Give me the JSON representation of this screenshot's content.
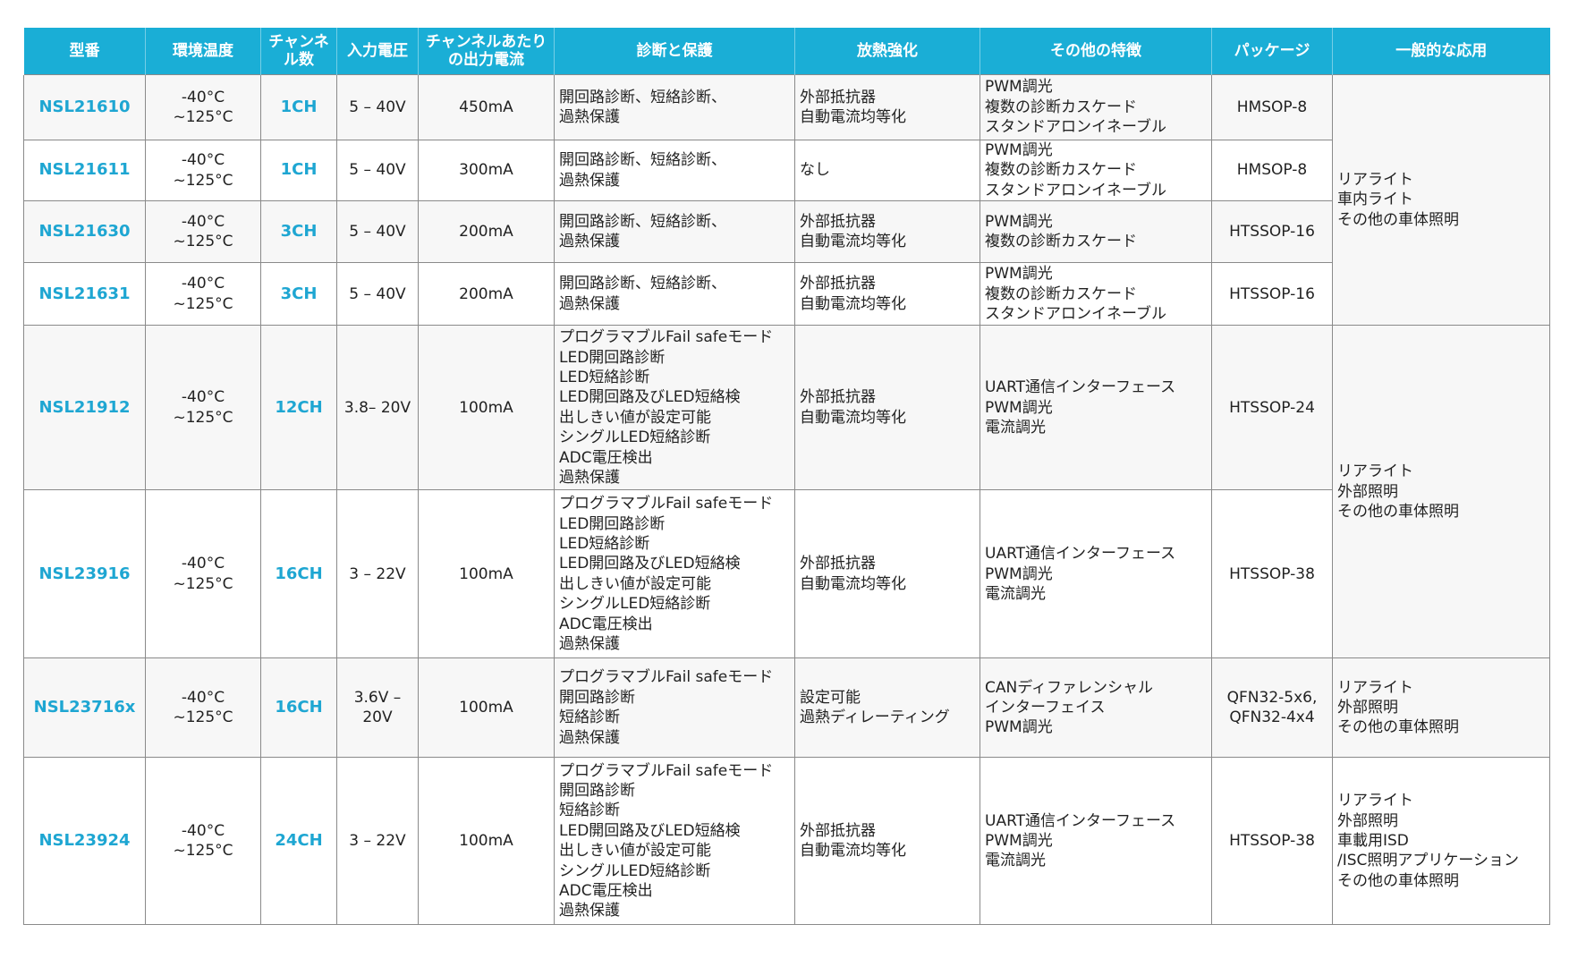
{
  "colors": {
    "header_bg": "#1aaed6",
    "accent_text": "#1ea6d2",
    "row_alt_bg": "#f7f7f7"
  },
  "headers": [
    "型番",
    "環境温度",
    "チャンネ\nル数",
    "入力電圧",
    "チャンネルあたり\nの出力電流",
    "診断と保護",
    "放熱強化",
    "その他の特徴",
    "パッケージ",
    "一般的な応用"
  ],
  "rows": [
    {
      "model": "NSL21610",
      "temp": "-40°C ~125°C",
      "ch": "1CH",
      "vin": "5 – 40V",
      "iout": "450mA",
      "diag": "開回路診断、短絡診断、\n過熱保護",
      "thermal": "外部抵抗器\n自動電流均等化",
      "other": "PWM調光\n複数の診断カスケード\nスタンドアロンイネーブル",
      "pkg": "HMSOP-8"
    },
    {
      "model": "NSL21611",
      "temp": "-40°C ~125°C",
      "ch": "1CH",
      "vin": "5 – 40V",
      "iout": "300mA",
      "diag": "開回路診断、短絡診断、\n過熱保護",
      "thermal": "なし",
      "other": "PWM調光\n複数の診断カスケード\nスタンドアロンイネーブル",
      "pkg": "HMSOP-8"
    },
    {
      "model": "NSL21630",
      "temp": "-40°C ~125°C",
      "ch": "3CH",
      "vin": "5 – 40V",
      "iout": "200mA",
      "diag": "開回路診断、短絡診断、\n過熱保護",
      "thermal": "外部抵抗器\n自動電流均等化",
      "other": "PWM調光\n複数の診断カスケード",
      "pkg": "HTSSOP-16"
    },
    {
      "model": "NSL21631",
      "temp": "-40°C ~125°C",
      "ch": "3CH",
      "vin": "5 – 40V",
      "iout": "200mA",
      "diag": "開回路診断、短絡診断、\n過熱保護",
      "thermal": "外部抵抗器\n自動電流均等化",
      "other": "PWM調光\n複数の診断カスケード\nスタンドアロンイネーブル",
      "pkg": "HTSSOP-16"
    },
    {
      "model": "NSL21912",
      "temp": "-40°C ~125°C",
      "ch": "12CH",
      "vin": "3.8– 20V",
      "iout": "100mA",
      "diag": "プログラマブルFail safeモード\nLED開回路診断\nLED短絡診断\nLED開回路及びLED短絡検\n出しきい値が設定可能\nシングルLED短絡診断\nADC電圧検出\n過熱保護",
      "thermal": "外部抵抗器\n自動電流均等化",
      "other": "UART通信インターフェース\nPWM調光\n電流調光",
      "pkg": "HTSSOP-24"
    },
    {
      "model": "NSL23916",
      "temp": "-40°C ~125°C",
      "ch": "16CH",
      "vin": "3 – 22V",
      "iout": "100mA",
      "diag": "プログラマブルFail safeモード\nLED開回路診断\nLED短絡診断\nLED開回路及びLED短絡検\n出しきい値が設定可能\nシングルLED短絡診断\nADC電圧検出\n過熱保護",
      "thermal": "外部抵抗器\n自動電流均等化",
      "other": "UART通信インターフェース\nPWM調光\n電流調光",
      "pkg": "HTSSOP-38"
    },
    {
      "model": "NSL23716x",
      "temp": "-40°C ~125°C",
      "ch": "16CH",
      "vin": "3.6V – 20V",
      "iout": "100mA",
      "diag": "プログラマブルFail safeモード\n開回路診断\n短絡診断\n過熱保護",
      "thermal": " 設定可能\n 過熱ディレーティング",
      "other": "CANディファレンシャル\nインターフェイス\nPWM調光",
      "pkg": "QFN32-5x6,\nQFN32-4x4"
    },
    {
      "model": "NSL23924",
      "temp": "-40°C ~125°C",
      "ch": "24CH",
      "vin": "3 – 22V",
      "iout": "100mA",
      "diag": "プログラマブルFail safeモード\n開回路診断\n短絡診断\nLED開回路及びLED短絡検\n出しきい値が設定可能\nシングルLED短絡診断\nADC電圧検出\n過熱保護",
      "thermal": "外部抵抗器\n自動電流均等化",
      "other": "UART通信インターフェース\nPWM調光\n電流調光",
      "pkg": "HTSSOP-38"
    }
  ],
  "applications": [
    {
      "rowspan": 4,
      "text": "リアライト\n車内ライト\nその他の車体照明"
    },
    {
      "rowspan": 2,
      "text": "リアライト\n外部照明\nその他の車体照明"
    },
    {
      "rowspan": 1,
      "text": "リアライト\n外部照明\nその他の車体照明"
    },
    {
      "rowspan": 1,
      "text": "リアライト\n外部照明\n車載用ISD\n/ISC照明アプリケーション\nその他の車体照明"
    }
  ]
}
